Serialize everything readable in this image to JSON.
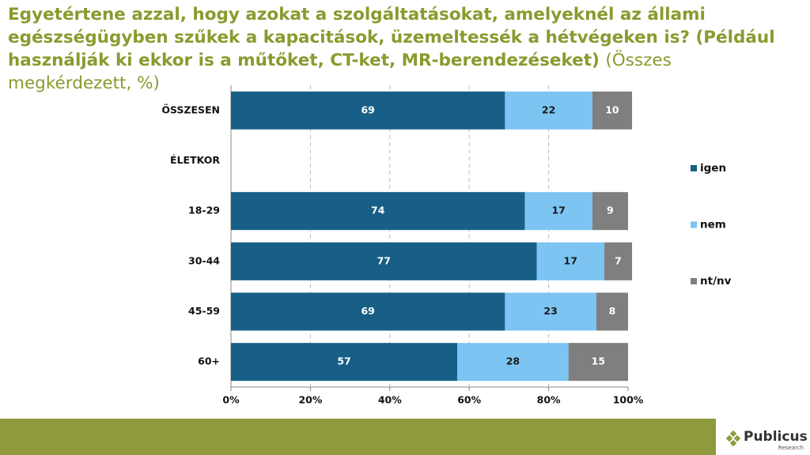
{
  "chart_data": {
    "type": "stacked_bar_horizontal",
    "title": "Egyetértene azzal, hogy azokat a szolgáltatásokat, amelyeknél az állami egészségügyben szűkek a kapacitások, üzemeltessék a hétvégeken is? (Például használják ki ekkor is a műtőket, CT-ket, MR-berendezéseket)",
    "subtitle": "(Összes megkérdezett, %)",
    "categories": [
      "ÖSSZESEN",
      "ÉLETKOR",
      "18-29",
      "30-44",
      "45-59",
      "60+"
    ],
    "series": [
      {
        "name": "igen",
        "color": "#175f86",
        "values": [
          69,
          null,
          74,
          77,
          69,
          57
        ]
      },
      {
        "name": "nem",
        "color": "#7cc4f2",
        "values": [
          22,
          null,
          17,
          17,
          23,
          28
        ]
      },
      {
        "name": "nt/nv",
        "color": "#7f7f7f",
        "values": [
          10,
          null,
          9,
          7,
          8,
          15
        ]
      }
    ],
    "xlim": [
      0,
      100
    ],
    "xticks": [
      {
        "value": 0,
        "label": "0%"
      },
      {
        "value": 20,
        "label": "20%"
      },
      {
        "value": 40,
        "label": "40%"
      },
      {
        "value": 60,
        "label": "60%"
      },
      {
        "value": 80,
        "label": "80%"
      },
      {
        "value": 100,
        "label": "100%"
      }
    ],
    "grid": true
  },
  "logo": {
    "name": "Publicus",
    "tagline": "Research"
  }
}
